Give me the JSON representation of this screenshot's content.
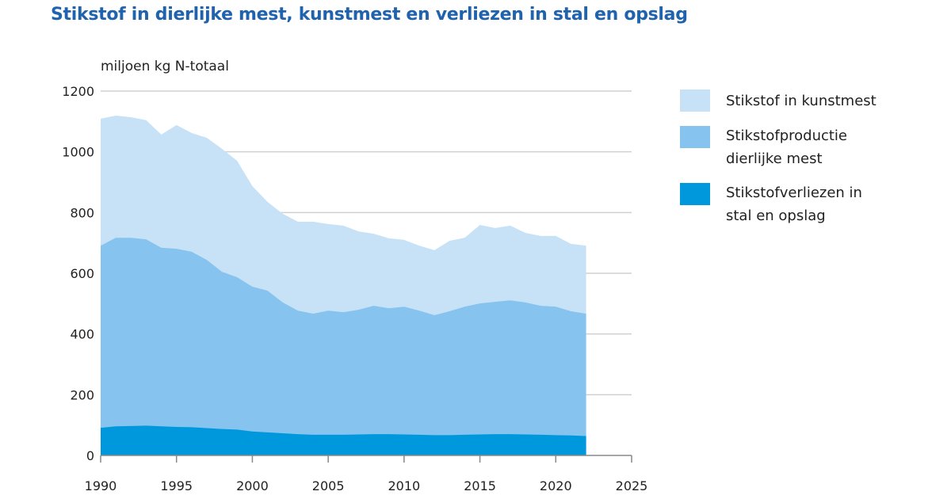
{
  "chart_data": {
    "type": "area",
    "title": "Stikstof in dierlijke mest, kunstmest en verliezen in stal en opslag",
    "ylabel": "miljoen kg N-totaal",
    "xlabel": "",
    "xlim": [
      1990,
      2025
    ],
    "ylim": [
      0,
      1200
    ],
    "x_ticks": [
      "1990",
      "1995",
      "2000",
      "2005",
      "2010",
      "2015",
      "2020",
      "2025"
    ],
    "y_ticks": [
      "0",
      "200",
      "400",
      "600",
      "800",
      "1000",
      "1200"
    ],
    "grid": "horizontal",
    "legend_position": "right",
    "stacking": "Stikstof in kunstmest is stacked on top of Stikstofproductie dierlijke mest; Stikstofverliezen in stal en opslag is drawn from zero",
    "x": [
      1990,
      1991,
      1992,
      1993,
      1994,
      1995,
      1996,
      1997,
      1998,
      1999,
      2000,
      2001,
      2002,
      2003,
      2004,
      2005,
      2006,
      2007,
      2008,
      2009,
      2010,
      2011,
      2012,
      2013,
      2014,
      2015,
      2016,
      2017,
      2018,
      2019,
      2020,
      2021,
      2022
    ],
    "series": [
      {
        "name": "Stikstof in kunstmest",
        "color": "#c7e1f6",
        "values": [
          418,
          402,
          397,
          392,
          373,
          407,
          391,
          402,
          405,
          383,
          331,
          292,
          292,
          293,
          303,
          285,
          285,
          258,
          237,
          230,
          220,
          214,
          214,
          232,
          227,
          258,
          243,
          246,
          229,
          230,
          233,
          222,
          224
        ]
      },
      {
        "name": "Stikstofproductie dierlijke mest",
        "color": "#86c3ee",
        "values": [
          691,
          717,
          717,
          712,
          684,
          681,
          671,
          644,
          605,
          587,
          556,
          543,
          504,
          477,
          467,
          477,
          472,
          480,
          493,
          485,
          490,
          477,
          462,
          475,
          490,
          501,
          506,
          511,
          504,
          493,
          490,
          475,
          467
        ]
      },
      {
        "name": "Stikstofverliezen in stal en opslag",
        "color": "#0098dc",
        "values": [
          91,
          96,
          97,
          98,
          96,
          94,
          93,
          90,
          87,
          85,
          79,
          76,
          73,
          70,
          68,
          68,
          68,
          69,
          70,
          70,
          69,
          68,
          67,
          67,
          68,
          69,
          70,
          70,
          69,
          68,
          67,
          66,
          64
        ]
      }
    ]
  },
  "legend": [
    {
      "line1": "Stikstof in kunstmest",
      "line2": ""
    },
    {
      "line1": "Stikstofproductie",
      "line2": "dierlijke mest"
    },
    {
      "line1": "Stikstofverliezen in",
      "line2": "stal en opslag"
    }
  ]
}
